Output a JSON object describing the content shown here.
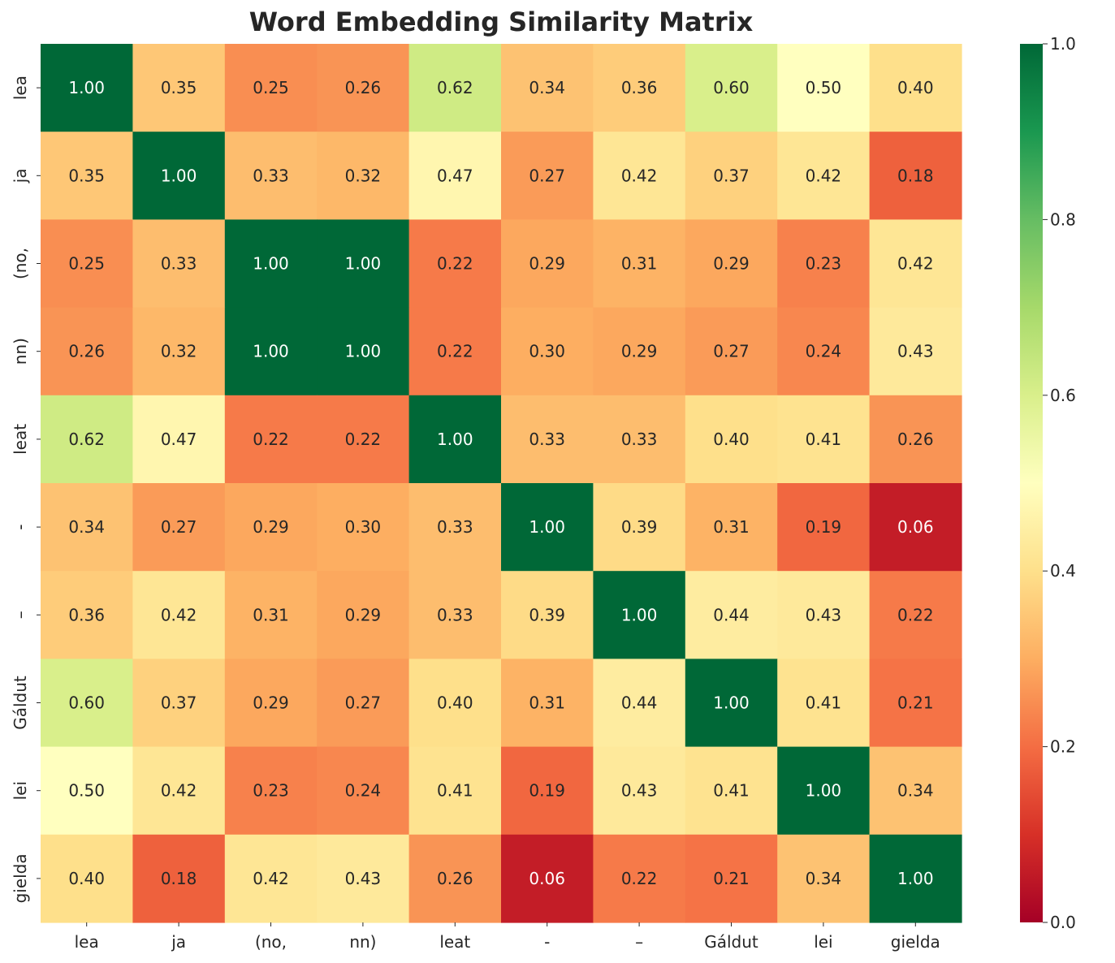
{
  "chart_data": {
    "type": "heatmap",
    "title": "Word Embedding Similarity Matrix",
    "xlabel": "",
    "ylabel": "",
    "x_labels": [
      "lea",
      "ja",
      "(no,",
      "nn)",
      "leat",
      "-",
      "–",
      "Gáldut",
      "lei",
      "gielda"
    ],
    "y_labels": [
      "lea",
      "ja",
      "(no,",
      "nn)",
      "leat",
      "-",
      "–",
      "Gáldut",
      "lei",
      "gielda"
    ],
    "values": [
      [
        1.0,
        0.35,
        0.25,
        0.26,
        0.62,
        0.34,
        0.36,
        0.6,
        0.5,
        0.4
      ],
      [
        0.35,
        1.0,
        0.33,
        0.32,
        0.47,
        0.27,
        0.42,
        0.37,
        0.42,
        0.18
      ],
      [
        0.25,
        0.33,
        1.0,
        1.0,
        0.22,
        0.29,
        0.31,
        0.29,
        0.23,
        0.42
      ],
      [
        0.26,
        0.32,
        1.0,
        1.0,
        0.22,
        0.3,
        0.29,
        0.27,
        0.24,
        0.43
      ],
      [
        0.62,
        0.47,
        0.22,
        0.22,
        1.0,
        0.33,
        0.33,
        0.4,
        0.41,
        0.26
      ],
      [
        0.34,
        0.27,
        0.29,
        0.3,
        0.33,
        1.0,
        0.39,
        0.31,
        0.19,
        0.06
      ],
      [
        0.36,
        0.42,
        0.31,
        0.29,
        0.33,
        0.39,
        1.0,
        0.44,
        0.43,
        0.22
      ],
      [
        0.6,
        0.37,
        0.29,
        0.27,
        0.4,
        0.31,
        0.44,
        1.0,
        0.41,
        0.21
      ],
      [
        0.5,
        0.42,
        0.23,
        0.24,
        0.41,
        0.19,
        0.43,
        0.41,
        1.0,
        0.34
      ],
      [
        0.4,
        0.18,
        0.42,
        0.43,
        0.26,
        0.06,
        0.22,
        0.21,
        0.34,
        1.0
      ]
    ],
    "value_format": "0.00",
    "colormap": "RdYlGn",
    "vmin": 0.0,
    "vmax": 1.0,
    "colorbar_ticks": [
      "0.0",
      "0.2",
      "0.4",
      "0.6",
      "0.8",
      "1.0"
    ],
    "grid": false
  }
}
